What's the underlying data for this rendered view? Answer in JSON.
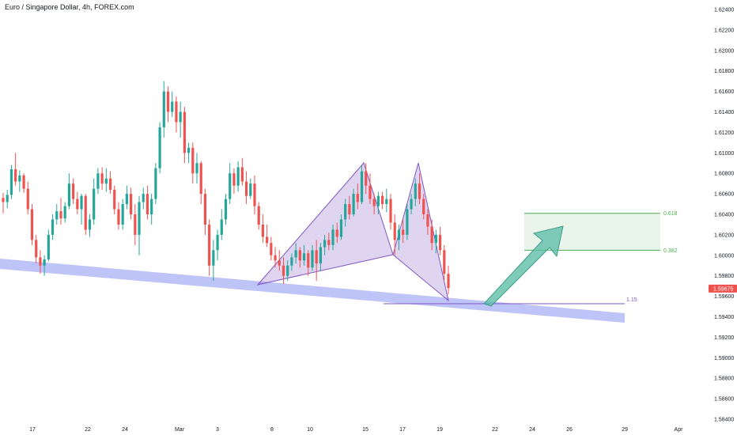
{
  "header": {
    "title": "Euro / Singapore Dollar, 4h, FOREX.com"
  },
  "chart_data": {
    "type": "candlestick",
    "symbol": "Euro / Singapore Dollar",
    "interval": "4h",
    "source": "FOREX.com",
    "y_ticks": [
      "1.62400",
      "1.62200",
      "1.62000",
      "1.61800",
      "1.61600",
      "1.61400",
      "1.61200",
      "1.61000",
      "1.60800",
      "1.60600",
      "1.60400",
      "1.60200",
      "1.60000",
      "1.59800",
      "1.59600",
      "1.59400",
      "1.59200",
      "1.59000",
      "1.58800",
      "1.58600",
      "1.58400"
    ],
    "x_ticks": [
      "17",
      "22",
      "24",
      "Mar",
      "3",
      "8",
      "10",
      "15",
      "17",
      "19",
      "22",
      "24",
      "26",
      "29",
      "Apr"
    ],
    "ylim": [
      1.584,
      1.624
    ],
    "last_price": "1.59675",
    "fib_levels": [
      {
        "label": "0.618",
        "price": 1.6041
      },
      {
        "label": "0.382",
        "price": 1.6005
      }
    ],
    "pattern_label": "1.15",
    "colors": {
      "up": "#26a69a",
      "down": "#ef5350",
      "pattern": "#7e57c2",
      "trendband": "#b4baf7",
      "fib": "#4caf50",
      "arrow": "#5fbea9"
    },
    "candles": [
      {
        "o": 1.6056,
        "h": 1.6061,
        "l": 1.6041,
        "c": 1.6052
      },
      {
        "o": 1.6052,
        "h": 1.6064,
        "l": 1.6046,
        "c": 1.6059
      },
      {
        "o": 1.6059,
        "h": 1.6088,
        "l": 1.6055,
        "c": 1.6084
      },
      {
        "o": 1.6084,
        "h": 1.61,
        "l": 1.6068,
        "c": 1.6072
      },
      {
        "o": 1.6072,
        "h": 1.6083,
        "l": 1.6062,
        "c": 1.6078
      },
      {
        "o": 1.6078,
        "h": 1.608,
        "l": 1.6061,
        "c": 1.6065
      },
      {
        "o": 1.6065,
        "h": 1.6072,
        "l": 1.604,
        "c": 1.6045
      },
      {
        "o": 1.6045,
        "h": 1.605,
        "l": 1.601,
        "c": 1.6015
      },
      {
        "o": 1.6015,
        "h": 1.602,
        "l": 1.5992,
        "c": 1.5998
      },
      {
        "o": 1.5998,
        "h": 1.6005,
        "l": 1.5982,
        "c": 1.599
      },
      {
        "o": 1.599,
        "h": 1.6,
        "l": 1.598,
        "c": 1.5996
      },
      {
        "o": 1.5996,
        "h": 1.6025,
        "l": 1.5994,
        "c": 1.602
      },
      {
        "o": 1.602,
        "h": 1.604,
        "l": 1.6015,
        "c": 1.6035
      },
      {
        "o": 1.6035,
        "h": 1.605,
        "l": 1.603,
        "c": 1.6043
      },
      {
        "o": 1.6043,
        "h": 1.6056,
        "l": 1.603,
        "c": 1.6036
      },
      {
        "o": 1.6036,
        "h": 1.6052,
        "l": 1.6032,
        "c": 1.6048
      },
      {
        "o": 1.6048,
        "h": 1.608,
        "l": 1.6045,
        "c": 1.607
      },
      {
        "o": 1.607,
        "h": 1.6075,
        "l": 1.605,
        "c": 1.6055
      },
      {
        "o": 1.6055,
        "h": 1.6062,
        "l": 1.604,
        "c": 1.6045
      },
      {
        "o": 1.6045,
        "h": 1.606,
        "l": 1.603,
        "c": 1.6058
      },
      {
        "o": 1.6058,
        "h": 1.606,
        "l": 1.602,
        "c": 1.6025
      },
      {
        "o": 1.6025,
        "h": 1.604,
        "l": 1.6018,
        "c": 1.6035
      },
      {
        "o": 1.6035,
        "h": 1.6075,
        "l": 1.603,
        "c": 1.6065
      },
      {
        "o": 1.6065,
        "h": 1.6085,
        "l": 1.606,
        "c": 1.608
      },
      {
        "o": 1.608,
        "h": 1.6086,
        "l": 1.6064,
        "c": 1.607
      },
      {
        "o": 1.607,
        "h": 1.6085,
        "l": 1.6062,
        "c": 1.6075
      },
      {
        "o": 1.6075,
        "h": 1.6082,
        "l": 1.606,
        "c": 1.6064
      },
      {
        "o": 1.6064,
        "h": 1.6068,
        "l": 1.604,
        "c": 1.6045
      },
      {
        "o": 1.6045,
        "h": 1.6052,
        "l": 1.6025,
        "c": 1.603
      },
      {
        "o": 1.603,
        "h": 1.6055,
        "l": 1.6025,
        "c": 1.605
      },
      {
        "o": 1.605,
        "h": 1.6068,
        "l": 1.6045,
        "c": 1.606
      },
      {
        "o": 1.606,
        "h": 1.6066,
        "l": 1.6035,
        "c": 1.604
      },
      {
        "o": 1.604,
        "h": 1.605,
        "l": 1.601,
        "c": 1.602
      },
      {
        "o": 1.602,
        "h": 1.6058,
        "l": 1.6,
        "c": 1.6052
      },
      {
        "o": 1.6052,
        "h": 1.6066,
        "l": 1.6045,
        "c": 1.606
      },
      {
        "o": 1.606,
        "h": 1.6068,
        "l": 1.6035,
        "c": 1.604
      },
      {
        "o": 1.604,
        "h": 1.606,
        "l": 1.603,
        "c": 1.6055
      },
      {
        "o": 1.6055,
        "h": 1.609,
        "l": 1.605,
        "c": 1.6085
      },
      {
        "o": 1.6085,
        "h": 1.613,
        "l": 1.608,
        "c": 1.6125
      },
      {
        "o": 1.6125,
        "h": 1.617,
        "l": 1.6115,
        "c": 1.616
      },
      {
        "o": 1.616,
        "h": 1.6165,
        "l": 1.613,
        "c": 1.614
      },
      {
        "o": 1.614,
        "h": 1.616,
        "l": 1.6135,
        "c": 1.615
      },
      {
        "o": 1.615,
        "h": 1.6155,
        "l": 1.612,
        "c": 1.613
      },
      {
        "o": 1.613,
        "h": 1.615,
        "l": 1.6115,
        "c": 1.614
      },
      {
        "o": 1.614,
        "h": 1.6145,
        "l": 1.609,
        "c": 1.61
      },
      {
        "o": 1.61,
        "h": 1.611,
        "l": 1.609,
        "c": 1.6105
      },
      {
        "o": 1.6105,
        "h": 1.611,
        "l": 1.607,
        "c": 1.608
      },
      {
        "o": 1.608,
        "h": 1.61,
        "l": 1.607,
        "c": 1.609
      },
      {
        "o": 1.609,
        "h": 1.6092,
        "l": 1.605,
        "c": 1.606
      },
      {
        "o": 1.606,
        "h": 1.6065,
        "l": 1.602,
        "c": 1.603
      },
      {
        "o": 1.603,
        "h": 1.6035,
        "l": 1.598,
        "c": 1.599
      },
      {
        "o": 1.599,
        "h": 1.6015,
        "l": 1.5975,
        "c": 1.6005
      },
      {
        "o": 1.6005,
        "h": 1.6025,
        "l": 1.5995,
        "c": 1.602
      },
      {
        "o": 1.602,
        "h": 1.6045,
        "l": 1.6015,
        "c": 1.6035
      },
      {
        "o": 1.6035,
        "h": 1.606,
        "l": 1.603,
        "c": 1.6055
      },
      {
        "o": 1.6055,
        "h": 1.609,
        "l": 1.605,
        "c": 1.608
      },
      {
        "o": 1.608,
        "h": 1.6085,
        "l": 1.606,
        "c": 1.6068
      },
      {
        "o": 1.6068,
        "h": 1.6092,
        "l": 1.6062,
        "c": 1.6086
      },
      {
        "o": 1.6086,
        "h": 1.6095,
        "l": 1.6068,
        "c": 1.6072
      },
      {
        "o": 1.6072,
        "h": 1.6082,
        "l": 1.605,
        "c": 1.6058
      },
      {
        "o": 1.6058,
        "h": 1.6075,
        "l": 1.6055,
        "c": 1.607
      },
      {
        "o": 1.607,
        "h": 1.6078,
        "l": 1.604,
        "c": 1.6048
      },
      {
        "o": 1.6048,
        "h": 1.6052,
        "l": 1.6025,
        "c": 1.603
      },
      {
        "o": 1.603,
        "h": 1.604,
        "l": 1.6012,
        "c": 1.6018
      },
      {
        "o": 1.6018,
        "h": 1.603,
        "l": 1.6008,
        "c": 1.6012
      },
      {
        "o": 1.6012,
        "h": 1.6018,
        "l": 1.5995,
        "c": 1.6
      },
      {
        "o": 1.6,
        "h": 1.6008,
        "l": 1.5988,
        "c": 1.5995
      },
      {
        "o": 1.5995,
        "h": 1.6005,
        "l": 1.5985,
        "c": 1.599
      },
      {
        "o": 1.599,
        "h": 1.5998,
        "l": 1.5972,
        "c": 1.598
      },
      {
        "o": 1.598,
        "h": 1.5995,
        "l": 1.5975,
        "c": 1.599
      },
      {
        "o": 1.599,
        "h": 1.6002,
        "l": 1.5985,
        "c": 1.5998
      },
      {
        "o": 1.5998,
        "h": 1.6012,
        "l": 1.5992,
        "c": 1.6005
      },
      {
        "o": 1.6005,
        "h": 1.6008,
        "l": 1.5988,
        "c": 1.5995
      },
      {
        "o": 1.5995,
        "h": 1.601,
        "l": 1.599,
        "c": 1.6002
      },
      {
        "o": 1.6002,
        "h": 1.6005,
        "l": 1.598,
        "c": 1.5988
      },
      {
        "o": 1.5988,
        "h": 1.601,
        "l": 1.5985,
        "c": 1.6005
      },
      {
        "o": 1.6005,
        "h": 1.6015,
        "l": 1.5975,
        "c": 1.5992
      },
      {
        "o": 1.5992,
        "h": 1.6012,
        "l": 1.5985,
        "c": 1.6008
      },
      {
        "o": 1.6008,
        "h": 1.602,
        "l": 1.6,
        "c": 1.6015
      },
      {
        "o": 1.6015,
        "h": 1.6022,
        "l": 1.6005,
        "c": 1.601
      },
      {
        "o": 1.601,
        "h": 1.603,
        "l": 1.6005,
        "c": 1.6025
      },
      {
        "o": 1.6025,
        "h": 1.6032,
        "l": 1.6012,
        "c": 1.6018
      },
      {
        "o": 1.6018,
        "h": 1.604,
        "l": 1.6015,
        "c": 1.6035
      },
      {
        "o": 1.6035,
        "h": 1.6055,
        "l": 1.6028,
        "c": 1.605
      },
      {
        "o": 1.605,
        "h": 1.6058,
        "l": 1.6035,
        "c": 1.604
      },
      {
        "o": 1.604,
        "h": 1.6065,
        "l": 1.6038,
        "c": 1.606
      },
      {
        "o": 1.606,
        "h": 1.607,
        "l": 1.6045,
        "c": 1.6052
      },
      {
        "o": 1.6052,
        "h": 1.6088,
        "l": 1.605,
        "c": 1.6082
      },
      {
        "o": 1.6082,
        "h": 1.609,
        "l": 1.606,
        "c": 1.6068
      },
      {
        "o": 1.6068,
        "h": 1.608,
        "l": 1.605,
        "c": 1.6055
      },
      {
        "o": 1.6055,
        "h": 1.606,
        "l": 1.604,
        "c": 1.6048
      },
      {
        "o": 1.6048,
        "h": 1.6062,
        "l": 1.604,
        "c": 1.6058
      },
      {
        "o": 1.6058,
        "h": 1.6062,
        "l": 1.6045,
        "c": 1.605
      },
      {
        "o": 1.605,
        "h": 1.6065,
        "l": 1.6042,
        "c": 1.6055
      },
      {
        "o": 1.6055,
        "h": 1.606,
        "l": 1.6025,
        "c": 1.6032
      },
      {
        "o": 1.6032,
        "h": 1.604,
        "l": 1.6,
        "c": 1.6015
      },
      {
        "o": 1.6015,
        "h": 1.603,
        "l": 1.6005,
        "c": 1.6025
      },
      {
        "o": 1.6025,
        "h": 1.6035,
        "l": 1.6012,
        "c": 1.602
      },
      {
        "o": 1.602,
        "h": 1.605,
        "l": 1.6015,
        "c": 1.6045
      },
      {
        "o": 1.6045,
        "h": 1.606,
        "l": 1.604,
        "c": 1.6055
      },
      {
        "o": 1.6055,
        "h": 1.6075,
        "l": 1.6048,
        "c": 1.607
      },
      {
        "o": 1.607,
        "h": 1.608,
        "l": 1.605,
        "c": 1.6055
      },
      {
        "o": 1.6055,
        "h": 1.606,
        "l": 1.6035,
        "c": 1.604
      },
      {
        "o": 1.604,
        "h": 1.6045,
        "l": 1.602,
        "c": 1.6028
      },
      {
        "o": 1.6028,
        "h": 1.6035,
        "l": 1.6005,
        "c": 1.6012
      },
      {
        "o": 1.6012,
        "h": 1.6025,
        "l": 1.6002,
        "c": 1.602
      },
      {
        "o": 1.602,
        "h": 1.6028,
        "l": 1.6,
        "c": 1.6005
      },
      {
        "o": 1.6005,
        "h": 1.601,
        "l": 1.5975,
        "c": 1.5982
      },
      {
        "o": 1.5982,
        "h": 1.599,
        "l": 1.5962,
        "c": 1.5968
      }
    ]
  }
}
